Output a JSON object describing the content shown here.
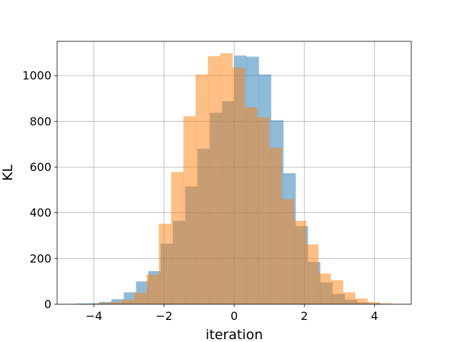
{
  "chart_data": {
    "type": "bar",
    "xlabel": "iteration",
    "ylabel": "KL",
    "xlim": [
      -5.05,
      5.05
    ],
    "ylim": [
      0,
      1150
    ],
    "grid": true,
    "xticks": [
      -4,
      -2,
      0,
      2,
      4
    ],
    "xtick_labels": [
      "−4",
      "−2",
      "0",
      "2",
      "4"
    ],
    "yticks": [
      0,
      200,
      400,
      600,
      800,
      1000
    ],
    "ytick_labels": [
      "0",
      "200",
      "400",
      "600",
      "800",
      "1000"
    ],
    "series": [
      {
        "color": "#1f77b4",
        "opacity": 0.5,
        "bins": [
          {
            "x0": -4.55,
            "x1": -4.2,
            "value": 3
          },
          {
            "x0": -4.2,
            "x1": -3.85,
            "value": 4
          },
          {
            "x0": -3.85,
            "x1": -3.5,
            "value": 10
          },
          {
            "x0": -3.5,
            "x1": -3.15,
            "value": 22
          },
          {
            "x0": -3.15,
            "x1": -2.8,
            "value": 52
          },
          {
            "x0": -2.8,
            "x1": -2.45,
            "value": 100
          },
          {
            "x0": -2.45,
            "x1": -2.1,
            "value": 145
          },
          {
            "x0": -2.1,
            "x1": -1.75,
            "value": 265
          },
          {
            "x0": -1.75,
            "x1": -1.4,
            "value": 365
          },
          {
            "x0": -1.4,
            "x1": -1.05,
            "value": 515
          },
          {
            "x0": -1.05,
            "x1": -0.7,
            "value": 680
          },
          {
            "x0": -0.7,
            "x1": -0.35,
            "value": 838
          },
          {
            "x0": -0.35,
            "x1": 0.0,
            "value": 888
          },
          {
            "x0": 0.0,
            "x1": 0.35,
            "value": 1088
          },
          {
            "x0": 0.35,
            "x1": 0.7,
            "value": 1083
          },
          {
            "x0": 0.7,
            "x1": 1.05,
            "value": 1005
          },
          {
            "x0": 1.05,
            "x1": 1.4,
            "value": 805
          },
          {
            "x0": 1.4,
            "x1": 1.75,
            "value": 573
          },
          {
            "x0": 1.75,
            "x1": 2.1,
            "value": 342
          },
          {
            "x0": 2.1,
            "x1": 2.45,
            "value": 185
          },
          {
            "x0": 2.45,
            "x1": 2.8,
            "value": 95
          },
          {
            "x0": 2.8,
            "x1": 3.15,
            "value": 45
          },
          {
            "x0": 3.15,
            "x1": 3.5,
            "value": 20
          },
          {
            "x0": 3.5,
            "x1": 3.85,
            "value": 8
          },
          {
            "x0": 3.85,
            "x1": 4.2,
            "value": 4
          }
        ]
      },
      {
        "color": "#ff7f0e",
        "opacity": 0.5,
        "bins": [
          {
            "x0": -3.9,
            "x1": -3.55,
            "value": 5
          },
          {
            "x0": -3.55,
            "x1": -3.2,
            "value": 10
          },
          {
            "x0": -3.2,
            "x1": -2.85,
            "value": 20
          },
          {
            "x0": -2.85,
            "x1": -2.5,
            "value": 50
          },
          {
            "x0": -2.5,
            "x1": -2.15,
            "value": 130
          },
          {
            "x0": -2.15,
            "x1": -1.8,
            "value": 352
          },
          {
            "x0": -1.8,
            "x1": -1.45,
            "value": 578
          },
          {
            "x0": -1.45,
            "x1": -1.1,
            "value": 822
          },
          {
            "x0": -1.1,
            "x1": -0.75,
            "value": 1005
          },
          {
            "x0": -0.75,
            "x1": -0.4,
            "value": 1085
          },
          {
            "x0": -0.4,
            "x1": -0.05,
            "value": 1098
          },
          {
            "x0": -0.05,
            "x1": 0.3,
            "value": 1035
          },
          {
            "x0": 0.3,
            "x1": 0.65,
            "value": 862
          },
          {
            "x0": 0.65,
            "x1": 1.0,
            "value": 818
          },
          {
            "x0": 1.0,
            "x1": 1.35,
            "value": 685
          },
          {
            "x0": 1.35,
            "x1": 1.7,
            "value": 460
          },
          {
            "x0": 1.7,
            "x1": 2.05,
            "value": 365
          },
          {
            "x0": 2.05,
            "x1": 2.4,
            "value": 262
          },
          {
            "x0": 2.4,
            "x1": 2.75,
            "value": 135
          },
          {
            "x0": 2.75,
            "x1": 3.1,
            "value": 105
          },
          {
            "x0": 3.1,
            "x1": 3.45,
            "value": 52
          },
          {
            "x0": 3.45,
            "x1": 3.8,
            "value": 25
          },
          {
            "x0": 3.8,
            "x1": 4.15,
            "value": 9
          },
          {
            "x0": 4.15,
            "x1": 4.5,
            "value": 4
          }
        ]
      }
    ]
  }
}
